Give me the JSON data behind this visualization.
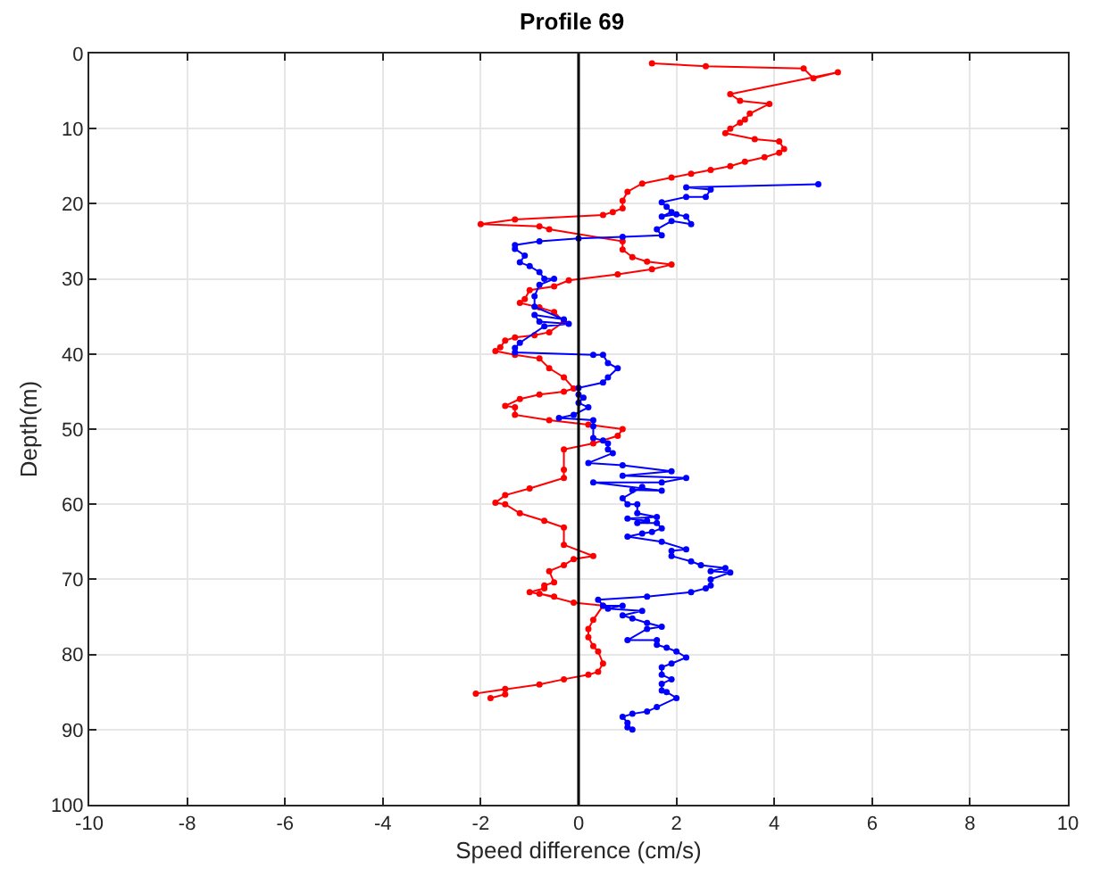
{
  "chart_data": {
    "type": "line",
    "title": "Profile 69",
    "xlabel": "Speed difference (cm/s)",
    "ylabel": "Depth(m)",
    "xlim": [
      -10,
      10
    ],
    "xticks": [
      -10,
      -8,
      -6,
      -4,
      -2,
      0,
      2,
      4,
      6,
      8,
      10
    ],
    "ylim": [
      100,
      0
    ],
    "yticks": [
      0,
      10,
      20,
      30,
      40,
      50,
      60,
      70,
      80,
      90,
      100
    ],
    "grid": true,
    "marker": "circle",
    "line_style": "solid",
    "ref_lines": [
      {
        "axis": "x",
        "value": 0,
        "color": "#000000"
      }
    ],
    "series": [
      {
        "color": "#ff0000",
        "x": [
          1.5,
          2.6,
          4.6,
          4.8,
          5.3,
          3.1,
          3.3,
          3.9,
          3.5,
          3.4,
          3.3,
          3.1,
          3.0,
          3.6,
          4.1,
          4.2,
          4.1,
          3.8,
          3.4,
          3.1,
          2.7,
          2.3,
          1.9,
          1.3,
          1.0,
          0.9,
          0.9,
          0.7,
          0.5,
          -1.3,
          -2.0,
          -0.8,
          -0.6,
          0.9,
          0.9,
          1.1,
          1.4,
          1.9,
          1.5,
          0.8,
          -0.2,
          -0.5,
          -1.0,
          -1.1,
          -1.2,
          -0.8,
          -0.5,
          -0.3,
          -0.6,
          -0.9,
          -1.3,
          -1.5,
          -1.6,
          -1.7,
          -1.3,
          -0.8,
          -0.6,
          -0.3,
          -0.1,
          -0.3,
          -0.8,
          -1.2,
          -1.5,
          -1.3,
          -1.3,
          -0.6,
          0.2,
          0.9,
          0.8,
          0.3,
          -0.3,
          -0.3,
          -0.3,
          -1.0,
          -1.5,
          -1.7,
          -1.5,
          -1.2,
          -0.7,
          -0.3,
          -0.3,
          0.3,
          -0.1,
          -0.3,
          -0.6,
          -0.5,
          -0.7,
          -0.7,
          -1.0,
          -0.5,
          -0.8,
          -0.1,
          0.5,
          0.3,
          0.2,
          0.2,
          0.3,
          0.4,
          0.5,
          0.4,
          0.2,
          -0.3,
          -0.8,
          -2.1,
          -1.5,
          -1.5,
          -1.8
        ],
        "values": [
          1.3,
          1.7,
          2.0,
          3.3,
          2.5,
          5.4,
          6.3,
          6.7,
          8.0,
          8.8,
          9.2,
          10.0,
          10.6,
          11.4,
          11.7,
          12.7,
          13.2,
          13.8,
          14.4,
          15.0,
          15.5,
          16.0,
          16.5,
          17.3,
          18.4,
          19.6,
          20.6,
          21.1,
          21.5,
          22.1,
          22.7,
          23.0,
          23.4,
          25.0,
          26.1,
          27.1,
          27.7,
          28.1,
          28.7,
          29.4,
          30.2,
          31.0,
          31.5,
          32.7,
          33.2,
          33.8,
          34.4,
          35.7,
          37.1,
          37.5,
          37.8,
          38.2,
          39.1,
          39.6,
          40.1,
          40.6,
          41.9,
          43.1,
          44.6,
          45.0,
          45.4,
          46.0,
          46.9,
          47.1,
          48.1,
          48.8,
          49.4,
          50.0,
          50.9,
          51.9,
          52.7,
          55.4,
          56.5,
          57.9,
          58.8,
          59.8,
          60.0,
          61.2,
          62.2,
          63.1,
          65.4,
          66.9,
          67.3,
          68.1,
          68.9,
          70.4,
          70.8,
          71.2,
          71.7,
          72.3,
          71.9,
          73.1,
          73.5,
          75.4,
          76.6,
          77.7,
          78.9,
          79.6,
          81.2,
          82.3,
          82.7,
          83.3,
          84.0,
          85.2,
          84.6,
          85.3,
          85.8
        ]
      },
      {
        "color": "#0000ff",
        "x": [
          4.9,
          2.2,
          2.7,
          2.6,
          2.2,
          1.7,
          1.8,
          1.9,
          1.7,
          2.0,
          2.2,
          2.3,
          1.9,
          1.6,
          1.7,
          0.9,
          0.0,
          -0.8,
          -1.3,
          -1.3,
          -1.1,
          -1.2,
          -1.0,
          -0.8,
          -0.7,
          -0.5,
          -0.8,
          -0.9,
          -0.9,
          -0.3,
          -0.9,
          -0.8,
          -0.2,
          -0.7,
          -1.2,
          -1.3,
          -1.3,
          0.3,
          0.5,
          0.6,
          0.8,
          0.6,
          0.5,
          0.0,
          0.0,
          0.1,
          0.0,
          0.2,
          -0.1,
          -0.4,
          0.3,
          0.3,
          0.3,
          0.5,
          0.6,
          0.6,
          0.7,
          0.2,
          0.9,
          1.9,
          0.9,
          2.2,
          1.7,
          0.3,
          1.7,
          1.1,
          1.3,
          0.9,
          1.0,
          1.2,
          1.2,
          1.6,
          1.0,
          1.4,
          1.2,
          1.6,
          1.7,
          1.5,
          1.3,
          1.0,
          1.7,
          2.2,
          1.9,
          1.9,
          2.3,
          2.5,
          3.0,
          2.7,
          3.1,
          2.7,
          2.7,
          2.6,
          2.3,
          1.4,
          0.4,
          0.5,
          0.9,
          0.6,
          1.3,
          0.9,
          1.1,
          1.4,
          1.7,
          1.4,
          1.0,
          1.6,
          1.6,
          1.8,
          2.0,
          2.2,
          1.9,
          1.7,
          1.7,
          1.9,
          1.7,
          1.7,
          1.8,
          2.0,
          1.6,
          1.4,
          1.1,
          0.9,
          1.0,
          1.0,
          1.1
        ],
        "values": [
          17.4,
          17.8,
          18.1,
          19.1,
          19.1,
          19.8,
          20.4,
          21.1,
          21.7,
          21.4,
          21.7,
          22.7,
          22.3,
          23.4,
          24.2,
          24.4,
          24.6,
          25.0,
          25.5,
          26.0,
          26.9,
          27.8,
          28.3,
          29.1,
          30.0,
          30.0,
          30.8,
          32.3,
          33.7,
          35.4,
          34.8,
          35.7,
          36.0,
          36.3,
          38.5,
          39.2,
          39.8,
          40.1,
          40.1,
          41.2,
          41.9,
          43.1,
          43.8,
          44.5,
          45.4,
          45.8,
          46.5,
          47.1,
          48.1,
          48.5,
          48.8,
          49.6,
          51.2,
          51.5,
          51.9,
          52.7,
          53.2,
          54.5,
          54.8,
          55.6,
          56.2,
          56.5,
          57.1,
          57.1,
          58.2,
          58.1,
          57.7,
          59.2,
          60.0,
          60.0,
          61.2,
          61.7,
          61.9,
          62.2,
          62.5,
          62.5,
          63.2,
          63.7,
          63.9,
          64.3,
          65.0,
          66.0,
          66.2,
          66.9,
          67.6,
          68.1,
          68.5,
          68.9,
          69.1,
          70.0,
          70.8,
          71.2,
          71.7,
          72.3,
          72.7,
          73.5,
          73.5,
          73.9,
          74.2,
          74.8,
          75.2,
          75.8,
          76.3,
          76.6,
          78.1,
          78.1,
          78.7,
          79.1,
          79.6,
          80.4,
          81.2,
          81.7,
          82.7,
          83.3,
          83.9,
          84.8,
          85.0,
          85.8,
          87.0,
          87.6,
          87.9,
          88.3,
          89.1,
          89.7,
          90.0
        ]
      }
    ]
  }
}
